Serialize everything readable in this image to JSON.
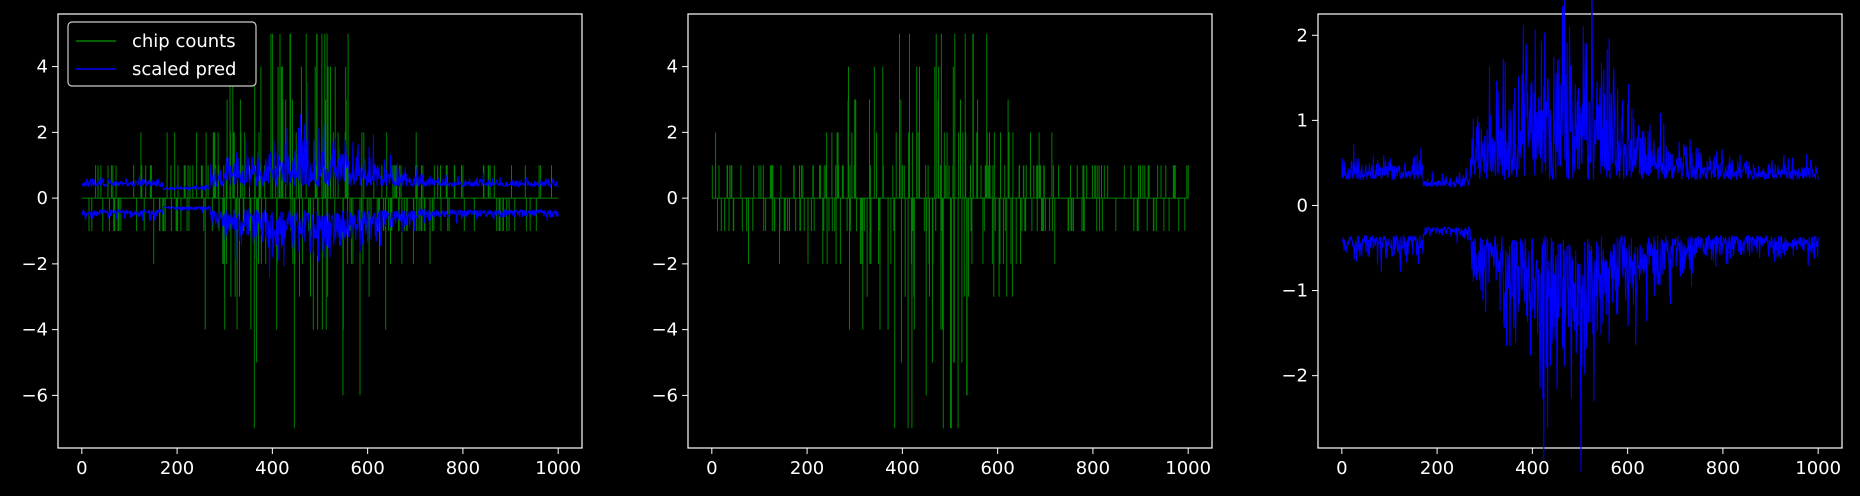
{
  "figure": {
    "background": "#000000",
    "axes_color": "#ffffff"
  },
  "chart_data": [
    {
      "type": "line",
      "title": "",
      "xlabel": "",
      "ylabel": "",
      "xlim": [
        -50,
        1050
      ],
      "ylim": [
        -7.6,
        5.6
      ],
      "xticks": [
        0,
        200,
        400,
        600,
        800,
        1000
      ],
      "yticks": [
        -6,
        -4,
        -2,
        0,
        2,
        4
      ],
      "legend": {
        "placement": "top-left"
      },
      "series": [
        {
          "name": "chip counts",
          "color": "#008000",
          "style": "step-noise",
          "x_range": [
            0,
            1000
          ],
          "envelope": {
            "max_abs": 7,
            "peak_at": 450,
            "width": 160,
            "base": 1
          }
        },
        {
          "name": "scaled pred",
          "color": "#0000ff",
          "style": "band-noise",
          "x_range": [
            0,
            1000
          ],
          "upper_mean": 0.35,
          "lower_mean": -0.35,
          "peak_amplitude": 1.5,
          "peak_at": 470
        }
      ]
    },
    {
      "type": "line",
      "title": "",
      "xlabel": "",
      "ylabel": "",
      "xlim": [
        -50,
        1050
      ],
      "ylim": [
        -7.6,
        5.6
      ],
      "xticks": [
        0,
        200,
        400,
        600,
        800,
        1000
      ],
      "yticks": [
        -6,
        -4,
        -2,
        0,
        2,
        4
      ],
      "series": [
        {
          "name": "",
          "color": "#008000",
          "style": "step-noise",
          "x_range": [
            0,
            1000
          ],
          "envelope": {
            "max_abs": 7,
            "peak_at": 450,
            "width": 160,
            "base": 1
          }
        }
      ]
    },
    {
      "type": "line",
      "title": "",
      "xlabel": "",
      "ylabel": "",
      "xlim": [
        -50,
        1050
      ],
      "ylim": [
        -2.85,
        2.25
      ],
      "xticks": [
        0,
        200,
        400,
        600,
        800,
        1000
      ],
      "yticks": [
        -2,
        -1,
        0,
        1,
        2
      ],
      "series": [
        {
          "name": "",
          "color": "#0000ff",
          "style": "band-noise",
          "x_range": [
            0,
            1000
          ],
          "upper_mean": 0.3,
          "lower_mean": -0.35,
          "peak_amplitude": 1.7,
          "peak_at": 470
        }
      ]
    }
  ]
}
